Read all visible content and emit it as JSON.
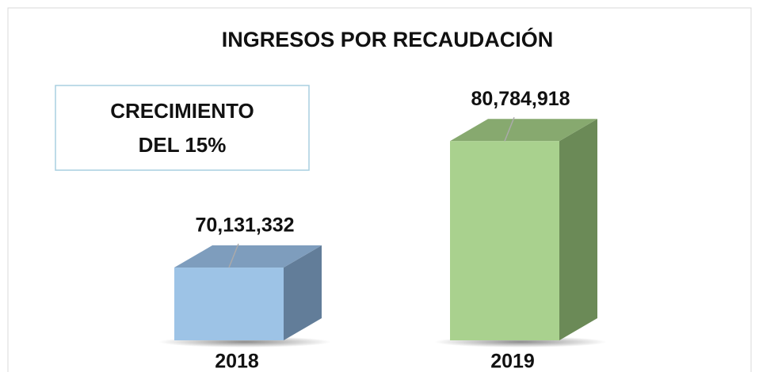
{
  "chart_data": {
    "type": "bar3d",
    "title": "INGRESOS POR RECAUDACIÓN",
    "annotation": [
      "CRECIMIENTO",
      "DEL 15%"
    ],
    "categories": [
      "2018",
      "2019"
    ],
    "values": [
      70131332,
      80784918
    ],
    "value_labels": [
      "70,131,332",
      "80,784,918"
    ],
    "colors": [
      "#9dc3e6",
      "#a9d18e"
    ],
    "side_colors": [
      "#627d99",
      "#6b8a57"
    ],
    "top_colors": [
      "#7e9dbd",
      "#87a96f"
    ],
    "ylim": [
      64000000,
      86000000
    ]
  }
}
